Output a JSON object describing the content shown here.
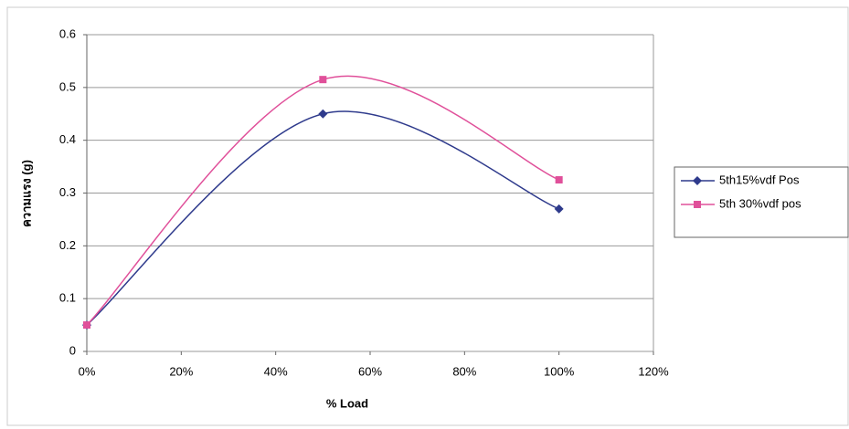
{
  "chart_data": {
    "type": "scatter-smooth",
    "x_label": "% Load",
    "y_label": "ความแรง (g)",
    "x": [
      0,
      50,
      100
    ],
    "series": [
      {
        "name": "5th15%vdf Pos",
        "color": "#2e3a8c",
        "marker": "diamond",
        "values": [
          0.05,
          0.45,
          0.27
        ]
      },
      {
        "name": "5th 30%vdf pos",
        "color": "#e0509a",
        "marker": "square",
        "values": [
          0.05,
          0.515,
          0.325
        ]
      }
    ],
    "xlim": [
      0,
      120
    ],
    "xticks": [
      {
        "value": 0,
        "label": "0%"
      },
      {
        "value": 20,
        "label": "20%"
      },
      {
        "value": 40,
        "label": "40%"
      },
      {
        "value": 60,
        "label": "60%"
      },
      {
        "value": 80,
        "label": "80%"
      },
      {
        "value": 100,
        "label": "100%"
      },
      {
        "value": 120,
        "label": "120%"
      }
    ],
    "ylim": [
      0,
      0.6
    ],
    "yticks": [
      0,
      0.1,
      0.2,
      0.3,
      0.4,
      0.5,
      0.6
    ],
    "grid": true,
    "legend": "right"
  }
}
